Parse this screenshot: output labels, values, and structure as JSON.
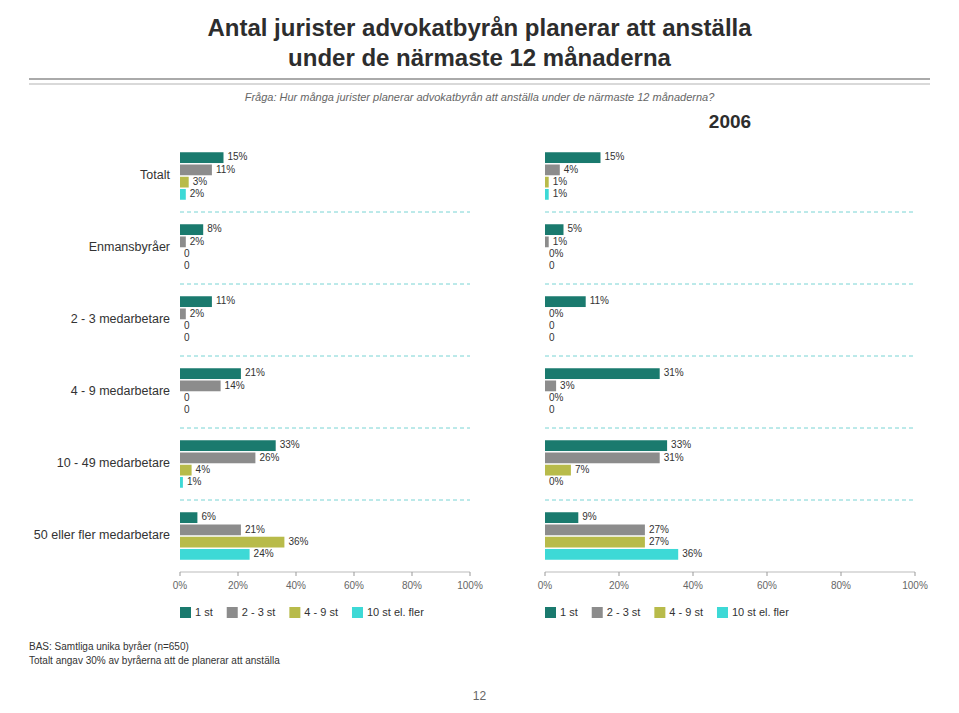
{
  "chart_data": [
    {
      "type": "bar",
      "orientation": "horizontal",
      "title": "Antal jurister advokatbyrån planerar att anställa\nunder de närmaste 12 månaderna",
      "subtitle": "Fråga: Hur många jurister planerar advokatbyrån att anställa under de närmaste 12 månaderna?",
      "annotations": [
        "BAS: Samtliga unika byråer (n=650)\nTotalt angav 30% av byråerna att de planerar att anställa",
        "12"
      ],
      "categories": [
        "Totalt",
        "Enmansbyråer",
        "2 - 3 medarbetare",
        "4 - 9 medarbetare",
        "10 - 49 medarbetare",
        "50 eller fler medarbetare"
      ],
      "series": [
        {
          "name": "1 st",
          "color": "#1a7a6e",
          "values": [
            15,
            8,
            11,
            21,
            33,
            6
          ],
          "value_labels": [
            "15%",
            "8%",
            "11%",
            "21%",
            "33%",
            "6%"
          ]
        },
        {
          "name": "2 - 3 st",
          "color": "#8c8c8c",
          "values": [
            11,
            2,
            2,
            14,
            26,
            21
          ],
          "value_labels": [
            "11%",
            "2%",
            "2%",
            "14%",
            "26%",
            "21%"
          ]
        },
        {
          "name": "4 - 9 st",
          "color": "#b8bb4a",
          "values": [
            3,
            0,
            0,
            0,
            4,
            36
          ],
          "value_labels": [
            "3%",
            "0",
            "0",
            "0",
            "4%",
            "36%"
          ]
        },
        {
          "name": "10 st el. fler",
          "color": "#3dd9d6",
          "values": [
            2,
            0,
            0,
            0,
            1,
            24
          ],
          "value_labels": [
            "2%",
            "0",
            "0",
            "0",
            "1%",
            "24%"
          ]
        }
      ],
      "xlim": [
        0,
        100
      ],
      "xticks": [
        {
          "value": 0,
          "label": "0%"
        },
        {
          "value": 20,
          "label": "20%"
        },
        {
          "value": 40,
          "label": "40%"
        },
        {
          "value": 60,
          "label": "60%"
        },
        {
          "value": 80,
          "label": "80%"
        },
        {
          "value": 100,
          "label": "100%"
        }
      ],
      "data_labels": true,
      "grid": false,
      "legend": "bottom"
    },
    {
      "type": "bar",
      "orientation": "horizontal",
      "title": "2006",
      "categories": [
        "Totalt",
        "Enmansbyråer",
        "2 - 3 medarbetare",
        "4 - 9 medarbetare",
        "10 - 49 medarbetare",
        "50 eller fler medarbetare"
      ],
      "series": [
        {
          "name": "1 st",
          "color": "#1a7a6e",
          "values": [
            15,
            5,
            11,
            31,
            33,
            9
          ],
          "value_labels": [
            "15%",
            "5%",
            "11%",
            "31%",
            "33%",
            "9%"
          ]
        },
        {
          "name": "2 - 3 st",
          "color": "#8c8c8c",
          "values": [
            4,
            1,
            0,
            3,
            31,
            27
          ],
          "value_labels": [
            "4%",
            "1%",
            "0%",
            "3%",
            "31%",
            "27%"
          ]
        },
        {
          "name": "4 - 9 st",
          "color": "#b8bb4a",
          "values": [
            1,
            0,
            0,
            0,
            7,
            27
          ],
          "value_labels": [
            "1%",
            "0%",
            "0",
            "0%",
            "7%",
            "27%"
          ]
        },
        {
          "name": "10 st el. fler",
          "color": "#3dd9d6",
          "values": [
            1,
            0,
            0,
            0,
            0,
            36
          ],
          "value_labels": [
            "1%",
            "0",
            "0",
            "0",
            "0%",
            "36%"
          ]
        }
      ],
      "xlim": [
        0,
        100
      ],
      "xticks": [
        {
          "value": 0,
          "label": "0%"
        },
        {
          "value": 20,
          "label": "20%"
        },
        {
          "value": 40,
          "label": "40%"
        },
        {
          "value": 60,
          "label": "60%"
        },
        {
          "value": 80,
          "label": "80%"
        },
        {
          "value": 100,
          "label": "100%"
        }
      ],
      "data_labels": true,
      "grid": false,
      "legend": "bottom",
      "tick_labels": "x"
    }
  ]
}
